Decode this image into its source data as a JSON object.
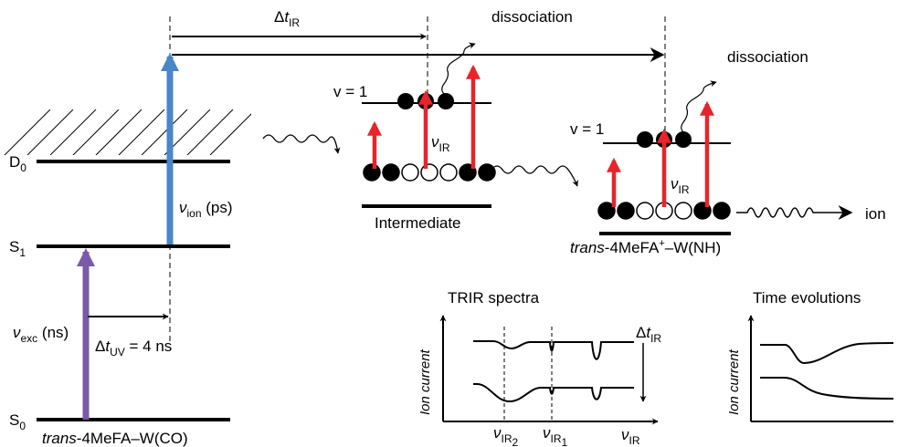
{
  "left_diagram": {
    "level_D0": {
      "base": "D",
      "sub": "0"
    },
    "level_S1": {
      "base": "S",
      "sub": "1"
    },
    "level_S0": {
      "base": "S",
      "sub": "0"
    },
    "nu_ion": {
      "sym": "ν",
      "sub": "ion",
      "rest": " (ps)"
    },
    "nu_exc": {
      "sym": "ν",
      "sub": "exc",
      "rest": " (ns)"
    },
    "dt_uv": {
      "sym": "Δ",
      "t": "t",
      "sub": "UV",
      "rest": " = 4 ns"
    },
    "species_neutral": {
      "italic": "trans",
      "rest": "-4MeFA–W(CO)"
    }
  },
  "top_delays": {
    "dt_ir": {
      "sym": "Δ",
      "t": "t",
      "sub": "IR"
    }
  },
  "intermediate": {
    "v_label": "v = 1",
    "dissociation": "dissociation",
    "nu_ir": {
      "sym": "ν",
      "sub": "IR"
    },
    "name": "Intermediate"
  },
  "final_state": {
    "v_label": "v = 1",
    "dissociation": "dissociation",
    "nu_ir": {
      "sym": "ν",
      "sub": "IR"
    },
    "ion": "ion",
    "species": {
      "italic": "trans",
      "mid": "-4MeFA",
      "sup": "+",
      "rest": "–W(NH)"
    }
  },
  "trir_panel": {
    "title": "TRIR spectra",
    "ylabel": "Ion current",
    "dt_ir": {
      "sym": "Δ",
      "t": "t",
      "sub": "IR"
    },
    "nu_ir2": {
      "sym": "ν",
      "sub": "IR",
      "sub2": "2"
    },
    "nu_ir1": {
      "sym": "ν",
      "sub": "IR",
      "sub2": "1"
    },
    "x_axis": {
      "sym": "ν",
      "sub": "IR"
    }
  },
  "time_panel": {
    "title": "Time evolutions",
    "ylabel": "Ion current"
  },
  "colors": {
    "blue_arrow": "#4a86c8",
    "purple_arrow": "#7a5aa6",
    "red_arrow": "#e8242b",
    "black": "#000000"
  }
}
